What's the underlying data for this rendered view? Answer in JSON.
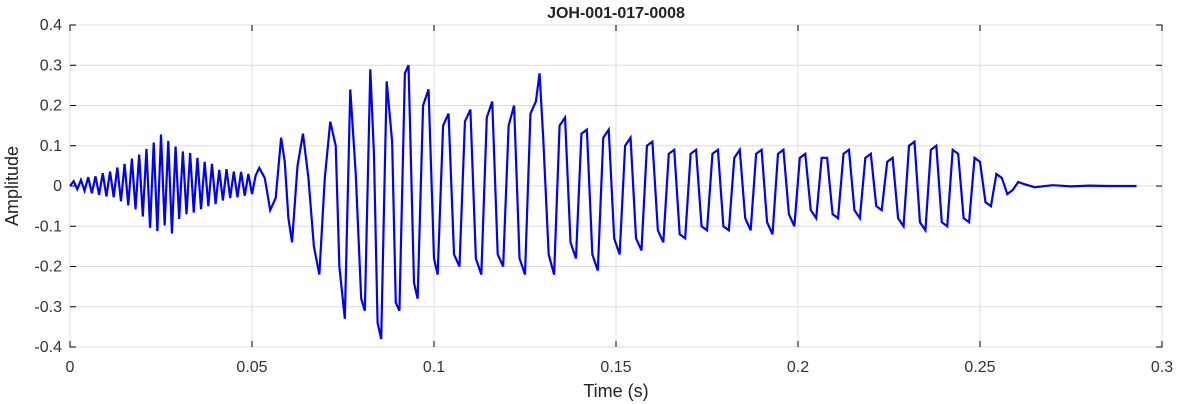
{
  "chart_data": {
    "type": "line",
    "title": "JOH-001-017-0008",
    "xlabel": "Time (s)",
    "ylabel": "Amplitude",
    "xlim": [
      0,
      0.3
    ],
    "ylim": [
      -0.4,
      0.4
    ],
    "grid": true,
    "xticks": [
      "0",
      "0.05",
      "0.1",
      "0.15",
      "0.2",
      "0.25",
      "0.3"
    ],
    "yticks": [
      "0.4",
      "0.3",
      "0.2",
      "0.1",
      "0",
      "-0.1",
      "-0.2",
      "-0.3",
      "-0.4"
    ],
    "series": [
      {
        "color": "#0000ff",
        "points": [
          [
            0.0,
            0.0
          ],
          [
            0.001,
            0.012
          ],
          [
            0.002,
            -0.008
          ],
          [
            0.003,
            0.015
          ],
          [
            0.004,
            -0.012
          ],
          [
            0.005,
            0.022
          ],
          [
            0.006,
            -0.018
          ],
          [
            0.007,
            0.024
          ],
          [
            0.008,
            -0.022
          ],
          [
            0.009,
            0.032
          ],
          [
            0.01,
            -0.026
          ],
          [
            0.011,
            0.036
          ],
          [
            0.012,
            -0.028
          ],
          [
            0.013,
            0.046
          ],
          [
            0.014,
            -0.038
          ],
          [
            0.015,
            0.055
          ],
          [
            0.016,
            -0.048
          ],
          [
            0.017,
            0.068
          ],
          [
            0.018,
            -0.058
          ],
          [
            0.019,
            0.078
          ],
          [
            0.02,
            -0.076
          ],
          [
            0.021,
            0.092
          ],
          [
            0.022,
            -0.104
          ],
          [
            0.023,
            0.108
          ],
          [
            0.024,
            -0.112
          ],
          [
            0.025,
            0.128
          ],
          [
            0.026,
            -0.098
          ],
          [
            0.027,
            0.112
          ],
          [
            0.028,
            -0.118
          ],
          [
            0.029,
            0.098
          ],
          [
            0.03,
            -0.082
          ],
          [
            0.031,
            0.086
          ],
          [
            0.032,
            -0.07
          ],
          [
            0.033,
            0.082
          ],
          [
            0.034,
            -0.066
          ],
          [
            0.035,
            0.07
          ],
          [
            0.036,
            -0.058
          ],
          [
            0.037,
            0.06
          ],
          [
            0.038,
            -0.05
          ],
          [
            0.039,
            0.055
          ],
          [
            0.04,
            -0.045
          ],
          [
            0.041,
            0.04
          ],
          [
            0.042,
            -0.036
          ],
          [
            0.043,
            0.042
          ],
          [
            0.044,
            -0.03
          ],
          [
            0.045,
            0.036
          ],
          [
            0.046,
            -0.028
          ],
          [
            0.047,
            0.035
          ],
          [
            0.048,
            -0.024
          ],
          [
            0.049,
            0.03
          ],
          [
            0.05,
            -0.02
          ],
          [
            0.051,
            0.026
          ],
          [
            0.052,
            0.045
          ],
          [
            0.0535,
            0.02
          ],
          [
            0.055,
            -0.06
          ],
          [
            0.0565,
            -0.03
          ],
          [
            0.058,
            0.12
          ],
          [
            0.059,
            0.06
          ],
          [
            0.06,
            -0.08
          ],
          [
            0.061,
            -0.14
          ],
          [
            0.0625,
            0.05
          ],
          [
            0.064,
            0.13
          ],
          [
            0.0655,
            0.02
          ],
          [
            0.067,
            -0.15
          ],
          [
            0.0685,
            -0.22
          ],
          [
            0.07,
            0.02
          ],
          [
            0.0715,
            0.16
          ],
          [
            0.073,
            0.1
          ],
          [
            0.074,
            -0.2
          ],
          [
            0.0755,
            -0.33
          ],
          [
            0.077,
            0.24
          ],
          [
            0.0785,
            0.03
          ],
          [
            0.08,
            -0.28
          ],
          [
            0.081,
            -0.31
          ],
          [
            0.0825,
            0.29
          ],
          [
            0.0835,
            0.08
          ],
          [
            0.0845,
            -0.34
          ],
          [
            0.0855,
            -0.38
          ],
          [
            0.087,
            0.26
          ],
          [
            0.0885,
            0.11
          ],
          [
            0.0895,
            -0.29
          ],
          [
            0.0905,
            -0.31
          ],
          [
            0.092,
            0.28
          ],
          [
            0.093,
            0.3
          ],
          [
            0.0945,
            -0.24
          ],
          [
            0.0955,
            -0.28
          ],
          [
            0.097,
            0.2
          ],
          [
            0.0985,
            0.24
          ],
          [
            0.1,
            -0.18
          ],
          [
            0.101,
            -0.22
          ],
          [
            0.1025,
            0.15
          ],
          [
            0.104,
            0.18
          ],
          [
            0.1055,
            -0.17
          ],
          [
            0.107,
            -0.2
          ],
          [
            0.1085,
            0.16
          ],
          [
            0.11,
            0.19
          ],
          [
            0.1115,
            -0.18
          ],
          [
            0.113,
            -0.22
          ],
          [
            0.1145,
            0.17
          ],
          [
            0.116,
            0.21
          ],
          [
            0.1175,
            -0.17
          ],
          [
            0.119,
            -0.2
          ],
          [
            0.1205,
            0.15
          ],
          [
            0.122,
            0.2
          ],
          [
            0.1235,
            -0.18
          ],
          [
            0.125,
            -0.22
          ],
          [
            0.1265,
            0.18
          ],
          [
            0.128,
            0.21
          ],
          [
            0.129,
            0.28
          ],
          [
            0.13,
            0.12
          ],
          [
            0.1315,
            -0.17
          ],
          [
            0.133,
            -0.22
          ],
          [
            0.1345,
            0.15
          ],
          [
            0.136,
            0.17
          ],
          [
            0.1375,
            -0.14
          ],
          [
            0.139,
            -0.18
          ],
          [
            0.1405,
            0.13
          ],
          [
            0.142,
            0.14
          ],
          [
            0.1435,
            -0.17
          ],
          [
            0.145,
            -0.21
          ],
          [
            0.1465,
            0.12
          ],
          [
            0.148,
            0.14
          ],
          [
            0.1495,
            -0.13
          ],
          [
            0.151,
            -0.17
          ],
          [
            0.1525,
            0.1
          ],
          [
            0.154,
            0.12
          ],
          [
            0.1555,
            -0.13
          ],
          [
            0.157,
            -0.16
          ],
          [
            0.1585,
            0.1
          ],
          [
            0.16,
            0.11
          ],
          [
            0.1615,
            -0.11
          ],
          [
            0.163,
            -0.14
          ],
          [
            0.1645,
            0.08
          ],
          [
            0.166,
            0.09
          ],
          [
            0.1675,
            -0.12
          ],
          [
            0.169,
            -0.13
          ],
          [
            0.1705,
            0.08
          ],
          [
            0.172,
            0.09
          ],
          [
            0.1735,
            -0.1
          ],
          [
            0.175,
            -0.11
          ],
          [
            0.1765,
            0.08
          ],
          [
            0.178,
            0.09
          ],
          [
            0.1795,
            -0.1
          ],
          [
            0.181,
            -0.11
          ],
          [
            0.1825,
            0.07
          ],
          [
            0.184,
            0.09
          ],
          [
            0.1855,
            -0.08
          ],
          [
            0.187,
            -0.11
          ],
          [
            0.1885,
            0.08
          ],
          [
            0.19,
            0.09
          ],
          [
            0.1915,
            -0.09
          ],
          [
            0.193,
            -0.12
          ],
          [
            0.1945,
            0.08
          ],
          [
            0.196,
            0.09
          ],
          [
            0.1975,
            -0.07
          ],
          [
            0.199,
            -0.1
          ],
          [
            0.2005,
            0.07
          ],
          [
            0.202,
            0.08
          ],
          [
            0.2035,
            -0.06
          ],
          [
            0.205,
            -0.08
          ],
          [
            0.2065,
            0.07
          ],
          [
            0.208,
            0.07
          ],
          [
            0.2095,
            -0.07
          ],
          [
            0.211,
            -0.08
          ],
          [
            0.2125,
            0.08
          ],
          [
            0.214,
            0.09
          ],
          [
            0.2155,
            -0.06
          ],
          [
            0.217,
            -0.08
          ],
          [
            0.2185,
            0.07
          ],
          [
            0.22,
            0.08
          ],
          [
            0.2215,
            -0.05
          ],
          [
            0.223,
            -0.06
          ],
          [
            0.2245,
            0.06
          ],
          [
            0.226,
            0.07
          ],
          [
            0.2275,
            -0.08
          ],
          [
            0.229,
            -0.1
          ],
          [
            0.2305,
            0.1
          ],
          [
            0.232,
            0.11
          ],
          [
            0.2335,
            -0.09
          ],
          [
            0.235,
            -0.11
          ],
          [
            0.2365,
            0.09
          ],
          [
            0.238,
            0.1
          ],
          [
            0.2395,
            -0.09
          ],
          [
            0.241,
            -0.1
          ],
          [
            0.2425,
            0.09
          ],
          [
            0.244,
            0.08
          ],
          [
            0.2455,
            -0.08
          ],
          [
            0.247,
            -0.09
          ],
          [
            0.2485,
            0.07
          ],
          [
            0.25,
            0.06
          ],
          [
            0.2515,
            -0.04
          ],
          [
            0.253,
            -0.05
          ],
          [
            0.2545,
            0.03
          ],
          [
            0.256,
            0.02
          ],
          [
            0.2575,
            -0.02
          ],
          [
            0.259,
            -0.01
          ],
          [
            0.2605,
            0.01
          ],
          [
            0.262,
            0.005
          ],
          [
            0.265,
            -0.003
          ],
          [
            0.27,
            0.002
          ],
          [
            0.275,
            -0.001
          ],
          [
            0.28,
            0.001
          ],
          [
            0.285,
            0.0
          ],
          [
            0.293,
            0.0
          ]
        ]
      }
    ]
  }
}
